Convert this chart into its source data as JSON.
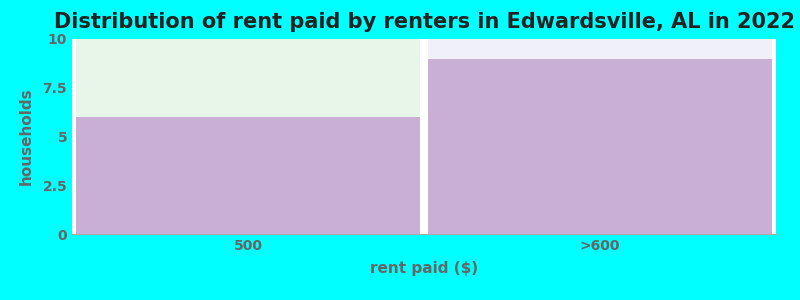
{
  "title": "Distribution of rent paid by renters in Edwardsville, AL in 2022",
  "categories": [
    "500",
    ">600"
  ],
  "values": [
    6,
    9
  ],
  "bar_color": "#c9aed6",
  "bar_edge_color": "none",
  "background_color": "#00ffff",
  "plot_bg_color": "#ffffff",
  "xlabel": "rent paid ($)",
  "ylabel": "households",
  "ylim": [
    0,
    10
  ],
  "yticks": [
    0,
    2.5,
    5,
    7.5,
    10
  ],
  "title_fontsize": 15,
  "axis_label_fontsize": 11,
  "tick_fontsize": 10,
  "title_color": "#222222",
  "axis_label_color": "#666666",
  "tick_color": "#666666",
  "bar1_top_color": "#e8f5e9",
  "bar2_top_color": "#f0f0f8",
  "bar1_value": 6,
  "bar2_value": 9
}
